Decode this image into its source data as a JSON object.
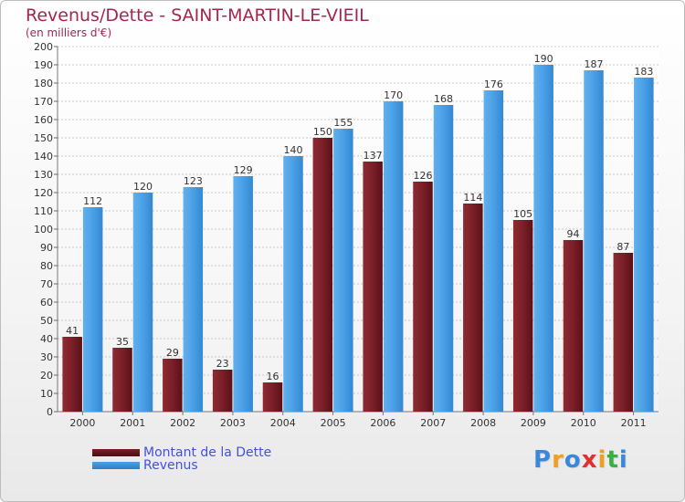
{
  "title": "Revenus/Dette - SAINT-MARTIN-LE-VIEIL",
  "subtitle": "(en milliers d'€)",
  "legend": {
    "debt_label": "Montant de la Dette",
    "revenue_label": "Revenus"
  },
  "logo": {
    "letters": [
      "P",
      "r",
      "o",
      "x",
      "i",
      "t",
      "i"
    ],
    "colors": [
      "#3a88d8",
      "#f0a020",
      "#3a88d8",
      "#e03030",
      "#f0a020",
      "#3ab040",
      "#3a88d8"
    ]
  },
  "colors": {
    "debt": "#7a1f28",
    "revenue": "#4aa0e6",
    "text": "#333333",
    "accent": "#a3264f",
    "legend_text": "#4450e0"
  },
  "chart_data": {
    "type": "bar",
    "title": "Revenus/Dette - SAINT-MARTIN-LE-VIEIL",
    "subtitle": "(en milliers d'€)",
    "categories": [
      "2000",
      "2001",
      "2002",
      "2003",
      "2004",
      "2005",
      "2006",
      "2007",
      "2008",
      "2009",
      "2010",
      "2011"
    ],
    "series": [
      {
        "name": "Montant de la Dette",
        "values": [
          41,
          35,
          29,
          23,
          16,
          150,
          137,
          126,
          114,
          105,
          94,
          87
        ]
      },
      {
        "name": "Revenus",
        "values": [
          112,
          120,
          123,
          129,
          140,
          155,
          170,
          168,
          176,
          190,
          187,
          183
        ]
      }
    ],
    "ylim": [
      0,
      200
    ],
    "yticks": [
      0,
      10,
      20,
      30,
      40,
      50,
      60,
      70,
      80,
      90,
      100,
      110,
      120,
      130,
      140,
      150,
      160,
      170,
      180,
      190,
      200
    ],
    "grid": true,
    "legend_position": "bottom-left"
  }
}
